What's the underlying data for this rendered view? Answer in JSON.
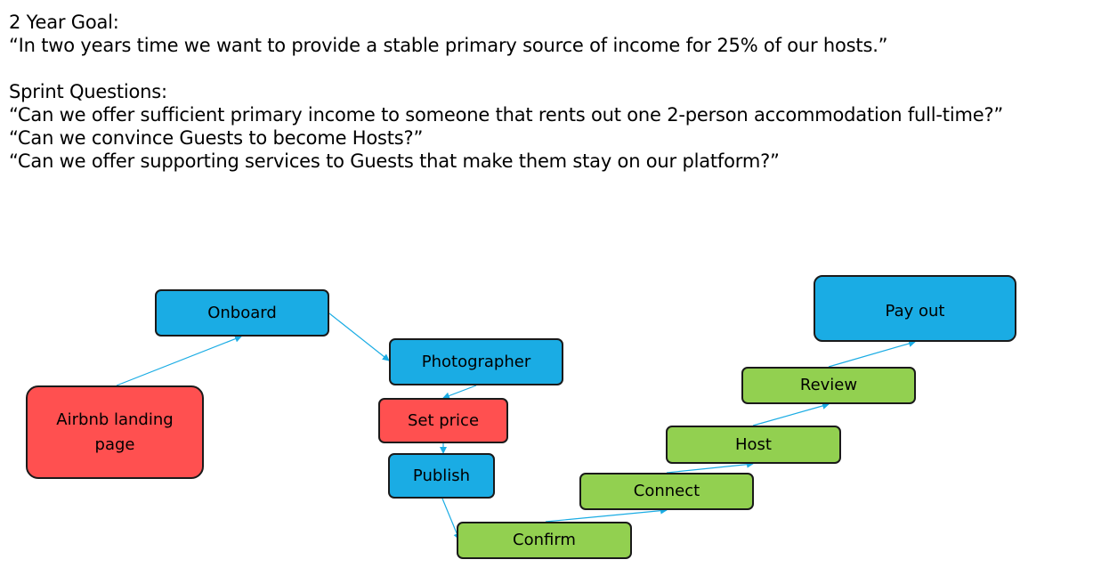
{
  "goal": {
    "title": "2 Year Goal:",
    "text": "“In two years time we want to provide a stable primary source of income for 25% of our hosts.”"
  },
  "sprint_questions": {
    "title": "Sprint Questions:",
    "items": [
      "“Can we offer sufficient primary income to someone that rents out one 2-person accommodation full-time?”",
      "“Can we convince Guests to become Hosts?”",
      "“Can we offer supporting services to Guests that make them stay on our platform?”"
    ]
  },
  "colors": {
    "red": "#ff5050",
    "blue": "#1aace4",
    "green": "#92d050",
    "arrow": "#1aace4"
  },
  "flow": {
    "nodes": [
      {
        "id": "landing",
        "label": "Airbnb landing page",
        "color": "red"
      },
      {
        "id": "onboard",
        "label": "Onboard",
        "color": "blue"
      },
      {
        "id": "photographer",
        "label": "Photographer",
        "color": "blue"
      },
      {
        "id": "setprice",
        "label": "Set price",
        "color": "red"
      },
      {
        "id": "publish",
        "label": "Publish",
        "color": "blue"
      },
      {
        "id": "confirm",
        "label": "Confirm",
        "color": "green"
      },
      {
        "id": "connect",
        "label": "Connect",
        "color": "green"
      },
      {
        "id": "host",
        "label": "Host",
        "color": "green"
      },
      {
        "id": "review",
        "label": "Review",
        "color": "green"
      },
      {
        "id": "payout",
        "label": "Pay out",
        "color": "blue"
      }
    ],
    "edges": [
      {
        "from": "landing",
        "to": "onboard"
      },
      {
        "from": "onboard",
        "to": "photographer"
      },
      {
        "from": "photographer",
        "to": "setprice"
      },
      {
        "from": "setprice",
        "to": "publish"
      },
      {
        "from": "publish",
        "to": "confirm"
      },
      {
        "from": "confirm",
        "to": "connect"
      },
      {
        "from": "connect",
        "to": "host"
      },
      {
        "from": "host",
        "to": "review"
      },
      {
        "from": "review",
        "to": "payout"
      }
    ]
  }
}
